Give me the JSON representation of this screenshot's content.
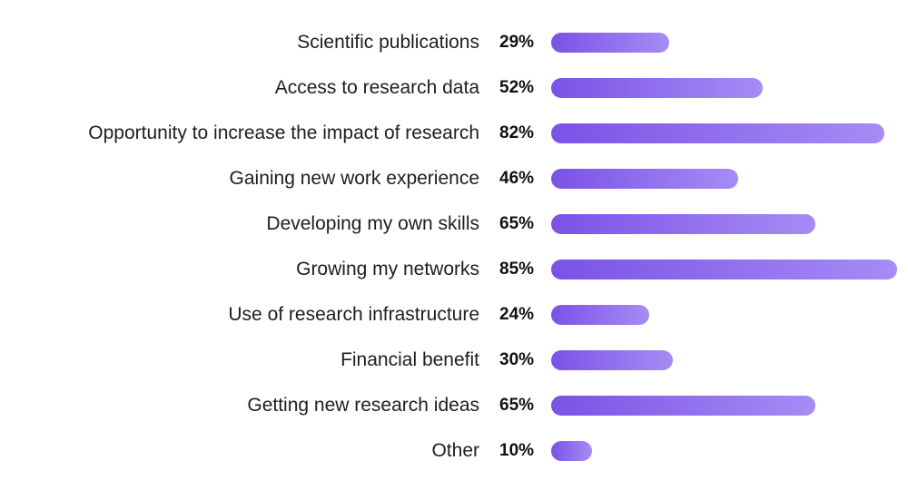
{
  "chart_data": {
    "type": "bar",
    "orientation": "horizontal",
    "categories": [
      "Scientific publications",
      "Access to research data",
      "Opportunity to increase the impact of research",
      "Gaining new work experience",
      "Developing my own skills",
      "Growing my networks",
      "Use of research infrastructure",
      "Financial benefit",
      "Getting new research ideas",
      "Other"
    ],
    "values": [
      29,
      52,
      82,
      46,
      65,
      85,
      24,
      30,
      65,
      10
    ],
    "value_labels": [
      "29%",
      "52%",
      "82%",
      "46%",
      "65%",
      "85%",
      "24%",
      "30%",
      "65%",
      "10%"
    ],
    "unit": "%",
    "xlim": [
      0,
      100
    ],
    "grid": false,
    "legend": "none",
    "title": "",
    "xlabel": "",
    "ylabel": "",
    "colors": {
      "bar_start": "#7B52E6",
      "bar_end": "#A68CF5",
      "label_text": "#1e1e1e",
      "value_text": "#111111"
    }
  }
}
